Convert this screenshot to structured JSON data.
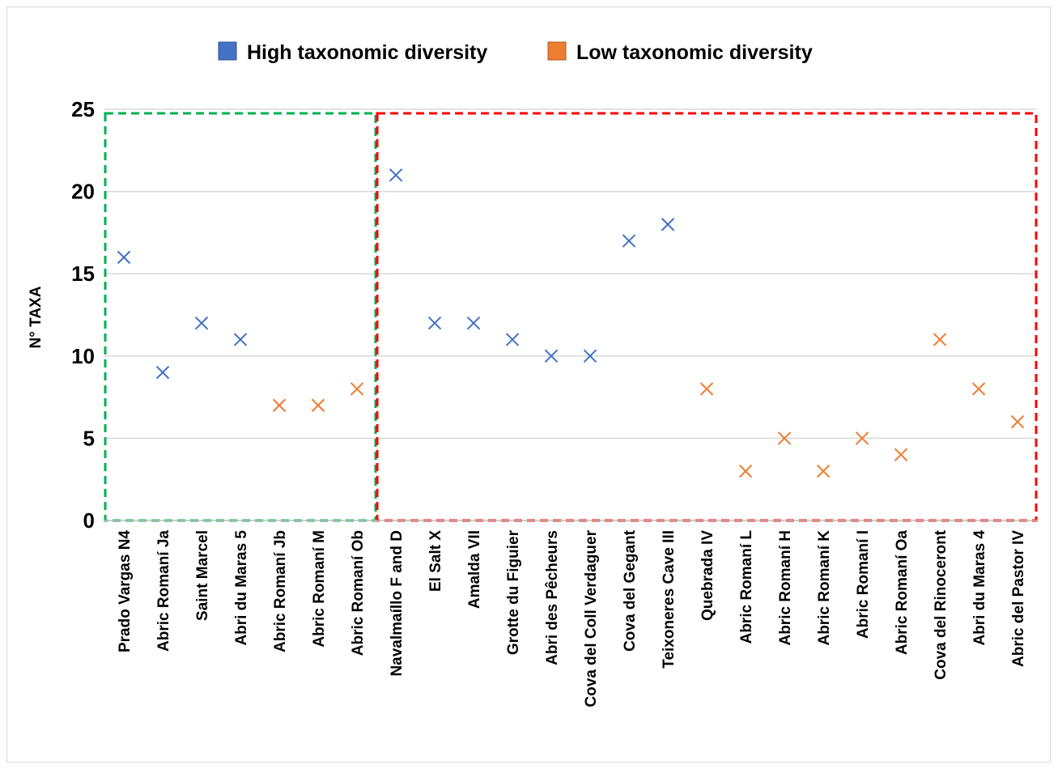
{
  "chart_data": {
    "type": "scatter",
    "categories": [
      "Prado Vargas N4",
      "Abric Romaní Ja",
      "Saint Marcel",
      "Abri du Maras 5",
      "Abric Romaní Jb",
      "Abric Romaní M",
      "Abric Romaní Ob",
      "Navalmaíllo F and D",
      "El Salt X",
      "Amalda VII",
      "Grotte du Figuier",
      "Abri des Pêcheurs",
      "Cova del Coll Verdaguer",
      "Cova del Gegant",
      "Teixoneres Cave III",
      "Quebrada IV",
      "Abric Romaní L",
      "Abric Romaní H",
      "Abric Romaní K",
      "Abric Romaní I",
      "Abric Romaní Oa",
      "Cova del Rinoceront",
      "Abri du Maras 4",
      "Abric del Pastor IV"
    ],
    "values": [
      16,
      9,
      12,
      11,
      7,
      7,
      8,
      21,
      12,
      12,
      11,
      10,
      10,
      17,
      18,
      8,
      3,
      5,
      3,
      5,
      4,
      11,
      8,
      6
    ],
    "groups": [
      "high",
      "high",
      "high",
      "high",
      "low",
      "low",
      "low",
      "high",
      "high",
      "high",
      "high",
      "high",
      "high",
      "high",
      "high",
      "low",
      "low",
      "low",
      "low",
      "low",
      "low",
      "low",
      "low",
      "low"
    ],
    "series": [
      {
        "name": "High taxonomic diversity",
        "key": "high",
        "color": "#4472c4",
        "marker": "x"
      },
      {
        "name": "Low taxonomic diversity",
        "key": "low",
        "color": "#ed7d31",
        "marker": "x"
      }
    ],
    "ylabel": "N° TAXA",
    "xlabel": "",
    "title": "",
    "ylim": [
      0,
      25
    ],
    "yticks": [
      0,
      5,
      10,
      15,
      20,
      25
    ],
    "grid": "horizontal",
    "legend": "top-center",
    "highlight_boxes": [
      {
        "from_category": 0,
        "to_category": 6,
        "color": "#00b050",
        "style": "dashed"
      },
      {
        "from_category": 7,
        "to_category": 23,
        "color": "#ff0000",
        "style": "dashed"
      }
    ]
  }
}
